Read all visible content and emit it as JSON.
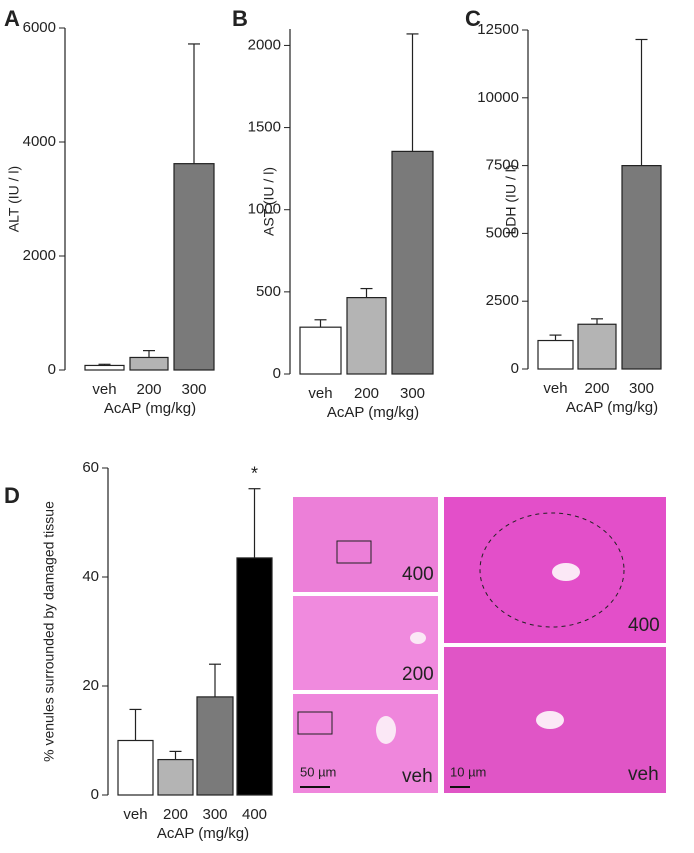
{
  "chart_data": [
    {
      "type": "bar",
      "panel": "A",
      "ylabel": "ALT  (IU / l)",
      "xlabel": "AcAP (mg/kg)",
      "categories": [
        "veh",
        "200",
        "300"
      ],
      "values": [
        80,
        220,
        3620
      ],
      "errors": [
        20,
        120,
        2100
      ],
      "colors": [
        "#ffffff",
        "#b4b4b4",
        "#7a7a7a"
      ],
      "ylim": [
        0,
        6000
      ],
      "yticks": [
        0,
        2000,
        4000,
        6000
      ]
    },
    {
      "type": "bar",
      "panel": "B",
      "ylabel": "AST  (IU / l)",
      "xlabel": "AcAP (mg/kg)",
      "categories": [
        "veh",
        "200",
        "300"
      ],
      "values": [
        285,
        465,
        1355
      ],
      "errors": [
        45,
        55,
        715
      ],
      "colors": [
        "#ffffff",
        "#b4b4b4",
        "#7a7a7a"
      ],
      "ylim": [
        0,
        2100
      ],
      "yticks": [
        0,
        500,
        1000,
        1500,
        2000
      ]
    },
    {
      "type": "bar",
      "panel": "C",
      "ylabel": "LDH  (IU / l)",
      "xlabel": "AcAP (mg/kg)",
      "categories": [
        "veh",
        "200",
        "300"
      ],
      "values": [
        1050,
        1650,
        7500
      ],
      "errors": [
        200,
        200,
        4650
      ],
      "colors": [
        "#ffffff",
        "#b4b4b4",
        "#7a7a7a"
      ],
      "ylim": [
        0,
        12500
      ],
      "yticks": [
        0,
        2500,
        5000,
        7500,
        10000,
        12500
      ]
    },
    {
      "type": "bar",
      "panel": "D",
      "ylabel": "% venules surrounded by damaged tissue",
      "xlabel": "AcAP (mg/kg)",
      "categories": [
        "veh",
        "200",
        "300",
        "400"
      ],
      "values": [
        10,
        6.5,
        18,
        43.5
      ],
      "errors": [
        5.7,
        1.5,
        6,
        12.7
      ],
      "colors": [
        "#ffffff",
        "#b4b4b4",
        "#7a7a7a",
        "#000000"
      ],
      "ylim": [
        0,
        60
      ],
      "yticks": [
        0,
        20,
        40,
        60
      ],
      "annotations": [
        {
          "text": "*",
          "category": "400"
        }
      ]
    }
  ],
  "micrographs": [
    {
      "label": "400"
    },
    {
      "label": "200"
    },
    {
      "label": "veh",
      "scale_bar": "50 µm"
    },
    {
      "label": "400"
    },
    {
      "label": "veh",
      "scale_bar": "10 µm"
    }
  ]
}
